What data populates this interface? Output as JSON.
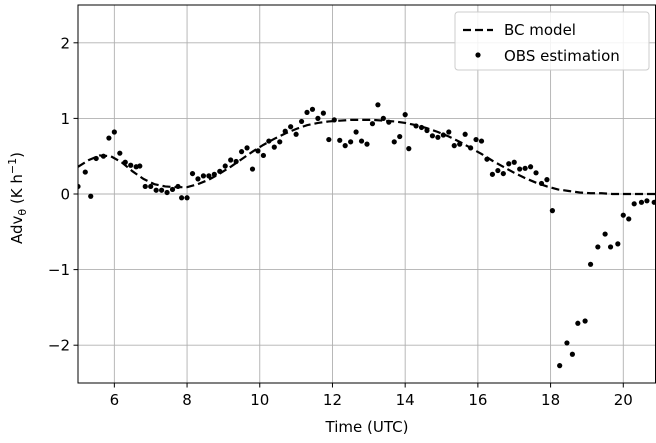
{
  "chart_data": {
    "type": "scatter",
    "xlabel": "Time (UTC)",
    "ylabel_main": "Adv",
    "ylabel_sub": "θ",
    "ylabel_units_pre": " (K h",
    "ylabel_units_sup": "−1",
    "ylabel_units_post": ")",
    "xlim": [
      5.0,
      20.9
    ],
    "ylim": [
      -2.5,
      2.5
    ],
    "xticks": [
      6,
      8,
      10,
      12,
      14,
      16,
      18,
      20
    ],
    "xtick_labels": [
      "6",
      "8",
      "10",
      "12",
      "14",
      "16",
      "18",
      "20"
    ],
    "yticks": [
      2,
      1,
      0,
      -1,
      -2
    ],
    "ytick_labels": [
      "2",
      "1",
      "0",
      "−1",
      "−2"
    ],
    "grid": true,
    "legend_position": "top-right",
    "series": [
      {
        "name": "BC model",
        "style": "dashed-line",
        "color": "#000000",
        "x": [
          5.0,
          5.3,
          5.6,
          5.9,
          6.2,
          6.5,
          6.8,
          7.1,
          7.4,
          7.7,
          8.0,
          8.3,
          8.6,
          8.9,
          9.2,
          9.5,
          9.8,
          10.1,
          10.4,
          10.7,
          11.0,
          11.3,
          11.6,
          11.9,
          12.2,
          12.5,
          12.8,
          13.1,
          13.4,
          13.7,
          14.0,
          14.3,
          14.6,
          14.9,
          15.2,
          15.5,
          15.8,
          16.1,
          16.4,
          16.7,
          17.0,
          17.3,
          17.6,
          17.9,
          18.2,
          18.5,
          18.8,
          19.1,
          19.4,
          19.7,
          20.0,
          20.3,
          20.6,
          20.9
        ],
        "y": [
          0.36,
          0.45,
          0.51,
          0.5,
          0.42,
          0.3,
          0.2,
          0.13,
          0.1,
          0.09,
          0.09,
          0.13,
          0.19,
          0.27,
          0.36,
          0.46,
          0.56,
          0.65,
          0.73,
          0.8,
          0.86,
          0.91,
          0.94,
          0.96,
          0.97,
          0.98,
          0.98,
          0.98,
          0.97,
          0.96,
          0.94,
          0.91,
          0.87,
          0.82,
          0.76,
          0.69,
          0.61,
          0.53,
          0.44,
          0.36,
          0.28,
          0.21,
          0.15,
          0.1,
          0.06,
          0.04,
          0.02,
          0.01,
          0.01,
          0.0,
          0.0,
          0.0,
          0.0,
          0.0
        ]
      },
      {
        "name": "OBS estimation",
        "style": "markers",
        "color": "#000000",
        "x": [
          5.0,
          5.2,
          5.35,
          5.5,
          5.7,
          5.85,
          6.0,
          6.15,
          6.3,
          6.45,
          6.6,
          6.7,
          6.85,
          7.0,
          7.15,
          7.3,
          7.45,
          7.6,
          7.75,
          7.85,
          8.0,
          8.15,
          8.3,
          8.45,
          8.6,
          8.75,
          8.9,
          9.05,
          9.2,
          9.35,
          9.5,
          9.65,
          9.8,
          9.95,
          10.1,
          10.25,
          10.4,
          10.55,
          10.7,
          10.85,
          11.0,
          11.15,
          11.3,
          11.45,
          11.6,
          11.75,
          11.9,
          12.05,
          12.2,
          12.35,
          12.5,
          12.65,
          12.8,
          12.95,
          13.1,
          13.25,
          13.4,
          13.55,
          13.7,
          13.85,
          14.0,
          14.1,
          14.3,
          14.45,
          14.6,
          14.75,
          14.9,
          15.05,
          15.2,
          15.35,
          15.5,
          15.65,
          15.8,
          15.95,
          16.1,
          16.25,
          16.4,
          16.55,
          16.7,
          16.85,
          17.0,
          17.15,
          17.3,
          17.45,
          17.6,
          17.75,
          17.9,
          18.05,
          18.25,
          18.45,
          18.6,
          18.75,
          18.95,
          19.1,
          19.3,
          19.5,
          19.65,
          19.85,
          20.0,
          20.15,
          20.3,
          20.5,
          20.65,
          20.85
        ],
        "y": [
          0.1,
          0.29,
          -0.03,
          0.47,
          0.5,
          0.74,
          0.82,
          0.54,
          0.42,
          0.38,
          0.36,
          0.37,
          0.1,
          0.1,
          0.05,
          0.05,
          0.02,
          0.06,
          0.1,
          -0.05,
          -0.05,
          0.27,
          0.2,
          0.24,
          0.24,
          0.26,
          0.3,
          0.37,
          0.45,
          0.43,
          0.56,
          0.61,
          0.33,
          0.57,
          0.51,
          0.7,
          0.62,
          0.69,
          0.83,
          0.89,
          0.79,
          0.96,
          1.08,
          1.12,
          1.0,
          1.07,
          0.72,
          0.98,
          0.71,
          0.64,
          0.69,
          0.82,
          0.7,
          0.66,
          0.93,
          1.18,
          1.0,
          0.95,
          0.69,
          0.76,
          1.05,
          0.6,
          0.9,
          0.88,
          0.84,
          0.77,
          0.75,
          0.78,
          0.82,
          0.64,
          0.66,
          0.79,
          0.61,
          0.72,
          0.7,
          0.46,
          0.26,
          0.31,
          0.27,
          0.4,
          0.42,
          0.33,
          0.34,
          0.36,
          0.28,
          0.14,
          0.19,
          -0.22,
          -2.27,
          -1.97,
          -2.12,
          -1.71,
          -1.68,
          -0.93,
          -0.7,
          -0.53,
          -0.7,
          -0.66,
          -0.28,
          -0.33,
          -0.13,
          -0.11,
          -0.09,
          -0.11
        ]
      }
    ]
  }
}
